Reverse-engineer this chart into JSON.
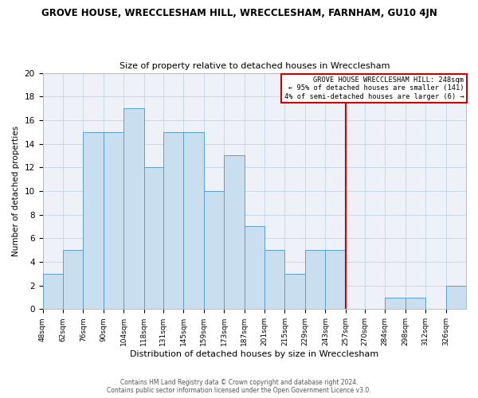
{
  "title": "GROVE HOUSE, WRECCLESHAM HILL, WRECCLESHAM, FARNHAM, GU10 4JN",
  "subtitle": "Size of property relative to detached houses in Wrecclesham",
  "xlabel": "Distribution of detached houses by size in Wrecclesham",
  "ylabel": "Number of detached properties",
  "bin_labels": [
    "48sqm",
    "62sqm",
    "76sqm",
    "90sqm",
    "104sqm",
    "118sqm",
    "131sqm",
    "145sqm",
    "159sqm",
    "173sqm",
    "187sqm",
    "201sqm",
    "215sqm",
    "229sqm",
    "243sqm",
    "257sqm",
    "270sqm",
    "284sqm",
    "298sqm",
    "312sqm",
    "326sqm"
  ],
  "bar_heights": [
    3,
    5,
    15,
    15,
    17,
    12,
    15,
    15,
    10,
    13,
    7,
    5,
    3,
    5,
    5,
    0,
    0,
    1,
    1,
    0,
    2
  ],
  "bar_color": "#c9dff0",
  "bar_edge_color": "#5a9fd4",
  "vline_x_idx": 14,
  "vline_color": "#cc0000",
  "ylim": [
    0,
    20
  ],
  "yticks": [
    0,
    2,
    4,
    6,
    8,
    10,
    12,
    14,
    16,
    18,
    20
  ],
  "annotation_title": "GROVE HOUSE WRECCLESHAM HILL: 248sqm",
  "annotation_line1": "← 95% of detached houses are smaller (141)",
  "annotation_line2": "4% of semi-detached houses are larger (6) →",
  "annotation_box_color": "#ffffff",
  "annotation_box_edge": "#cc0000",
  "footer1": "Contains HM Land Registry data © Crown copyright and database right 2024.",
  "footer2": "Contains public sector information licensed under the Open Government Licence v3.0.",
  "grid_color": "#c8d8e8",
  "background_color": "#eef2f8"
}
